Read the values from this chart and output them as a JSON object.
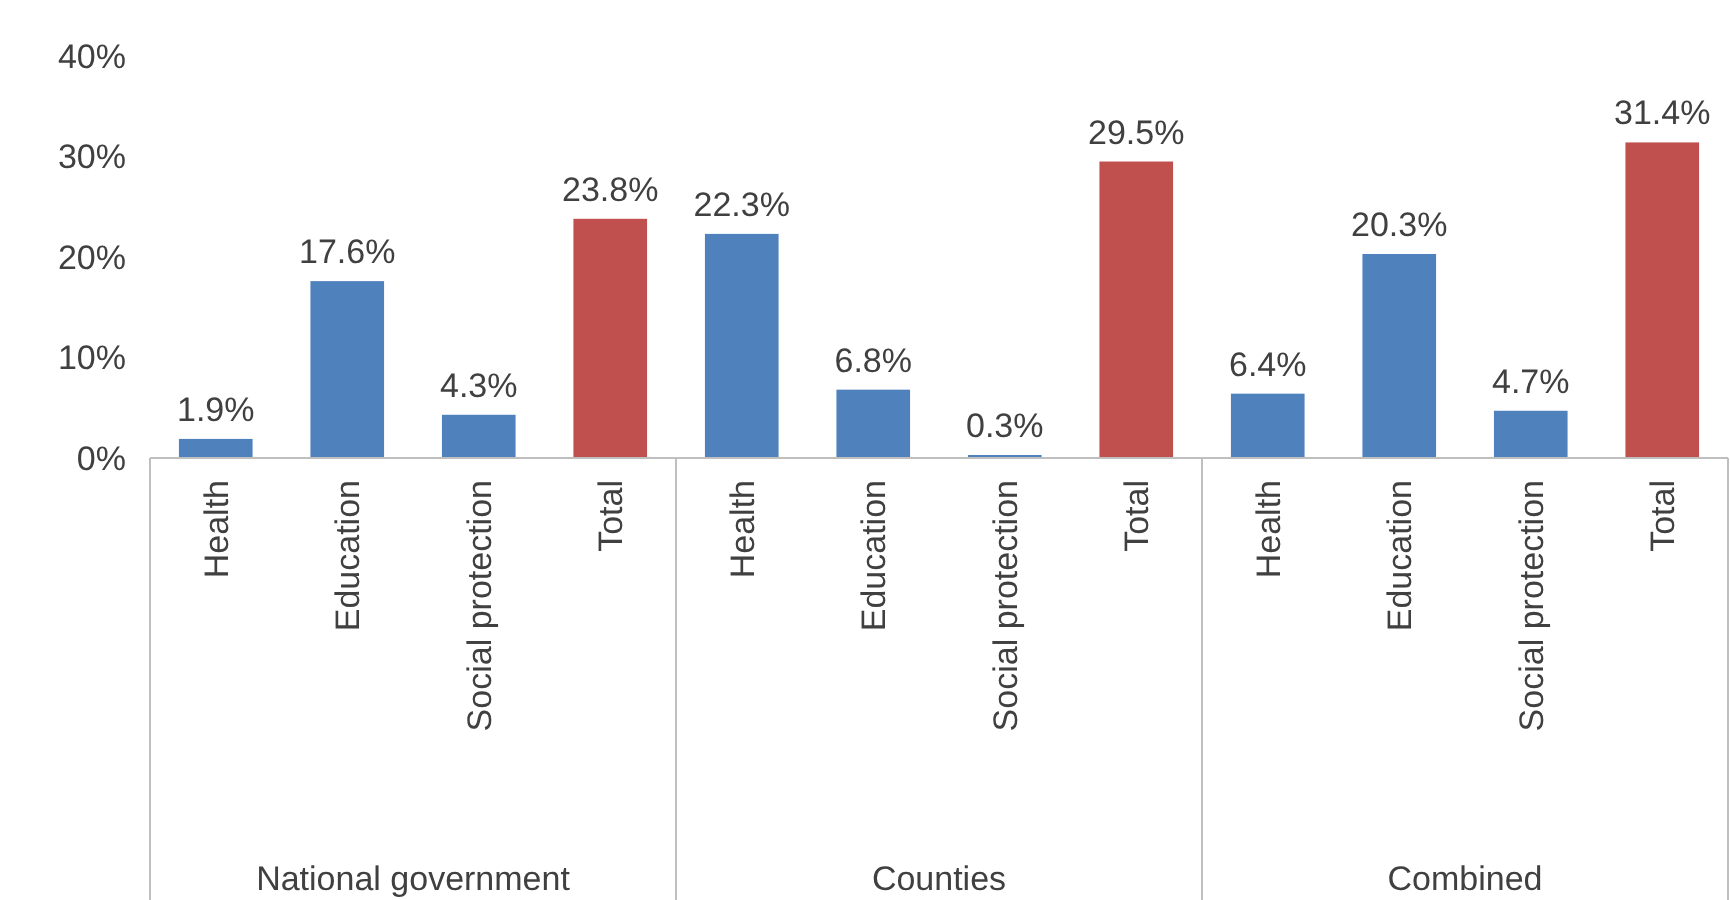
{
  "chart_data": [
    {
      "type": "bar",
      "xlabel": "National government",
      "categories": [
        "Health",
        "Education",
        "Social protection",
        "Total"
      ],
      "values": [
        1.9,
        17.6,
        4.3,
        23.8
      ],
      "colors": [
        "#4f81bd",
        "#4f81bd",
        "#4f81bd",
        "#c0504d"
      ],
      "value_labels": [
        "1.9%",
        "17.6%",
        "4.3%",
        "23.8%"
      ],
      "ylim": [
        0,
        40
      ],
      "yticks": [
        {
          "value": 0,
          "label": "0%"
        },
        {
          "value": 10,
          "label": "10%"
        },
        {
          "value": 20,
          "label": "20%"
        },
        {
          "value": 30,
          "label": "30%"
        },
        {
          "value": 40,
          "label": "40%"
        }
      ]
    },
    {
      "type": "bar",
      "xlabel": "Counties",
      "categories": [
        "Health",
        "Education",
        "Social protection",
        "Total"
      ],
      "values": [
        22.3,
        6.8,
        0.3,
        29.5
      ],
      "colors": [
        "#4f81bd",
        "#4f81bd",
        "#4f81bd",
        "#c0504d"
      ],
      "value_labels": [
        "22.3%",
        "6.8%",
        "0.3%",
        "29.5%"
      ],
      "ylim": [
        0,
        40
      ],
      "tick_labels": "x"
    },
    {
      "type": "bar",
      "xlabel": "Combined",
      "categories": [
        "Health",
        "Education",
        "Social protection",
        "Total"
      ],
      "values": [
        6.4,
        20.3,
        4.7,
        31.4
      ],
      "colors": [
        "#4f81bd",
        "#4f81bd",
        "#4f81bd",
        "#c0504d"
      ],
      "value_labels": [
        "6.4%",
        "20.3%",
        "4.7%",
        "31.4%"
      ],
      "ylim": [
        0,
        40
      ],
      "tick_labels": "x"
    }
  ]
}
